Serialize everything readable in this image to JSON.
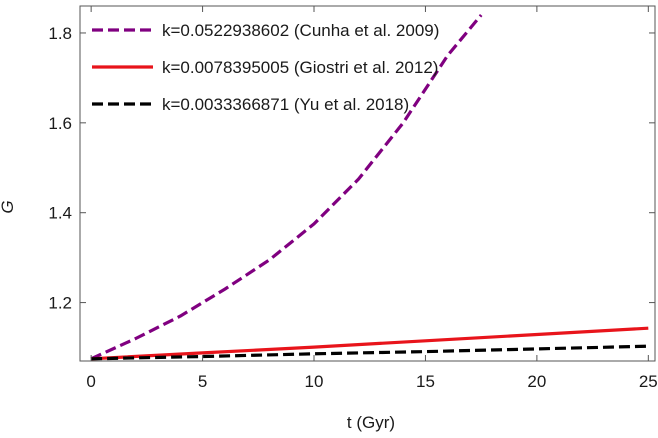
{
  "chart_data": {
    "type": "line",
    "xlabel": "t (Gyr)",
    "ylabel": "G",
    "xlim": [
      -0.5,
      25.3
    ],
    "ylim": [
      1.07,
      1.86
    ],
    "x_ticks": [
      0,
      5,
      10,
      15,
      20,
      25
    ],
    "x_tick_labels": [
      "0",
      "5",
      "10",
      "15",
      "20",
      "25"
    ],
    "y_ticks": [
      1.2,
      1.4,
      1.6,
      1.8
    ],
    "y_tick_labels": [
      "1.2",
      "1.4",
      "1.6",
      "1.8"
    ],
    "grid": false,
    "legend_position": "top-left",
    "series": [
      {
        "name": "k=0.0522938602 (Cunha et al. 2009)",
        "color": "#800080",
        "dash": "dashed",
        "x": [
          0,
          2,
          4,
          6,
          8,
          10,
          12,
          14,
          16,
          17.5
        ],
        "y": [
          1.075,
          1.12,
          1.17,
          1.23,
          1.295,
          1.375,
          1.475,
          1.6,
          1.75,
          1.84
        ]
      },
      {
        "name": "k=0.0078395005 (Giostri et al. 2012)",
        "color": "#e8141b",
        "dash": "solid",
        "x": [
          0,
          5,
          10,
          15,
          20,
          25
        ],
        "y": [
          1.075,
          1.088,
          1.101,
          1.115,
          1.129,
          1.143
        ]
      },
      {
        "name": "k=0.0033366871 (Yu et al. 2018)",
        "color": "#000000",
        "dash": "dashed",
        "x": [
          0,
          5,
          10,
          15,
          20,
          25
        ],
        "y": [
          1.075,
          1.08,
          1.086,
          1.091,
          1.097,
          1.103
        ]
      }
    ]
  }
}
